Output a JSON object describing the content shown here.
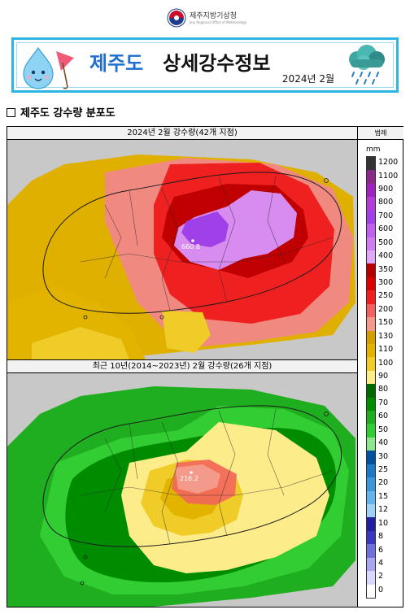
{
  "header": {
    "org_name": "제주지방기상청",
    "org_sub": "Jeju Regional Office of Meteorology"
  },
  "banner": {
    "title_region": "제주도",
    "title_main": "상세강수정보",
    "date": "2024년 2월"
  },
  "section_title": "제주도 강수량 분포도",
  "maps": [
    {
      "title": "2024년 2월 강수량(42개 지점)",
      "max_label": "660.8"
    },
    {
      "title": "최근 10년(2014~2023년) 2월 강수량(26개 지점)",
      "max_label": "216.2"
    }
  ],
  "legend": {
    "header": "범례",
    "unit": "mm",
    "levels": [
      {
        "label": "1200",
        "color": "#333333"
      },
      {
        "label": "1100",
        "color": "#8a2a8a"
      },
      {
        "label": "900",
        "color": "#a020c0"
      },
      {
        "label": "800",
        "color": "#b43cd8"
      },
      {
        "label": "700",
        "color": "#a040e8"
      },
      {
        "label": "600",
        "color": "#c060ee"
      },
      {
        "label": "500",
        "color": "#d07cf2"
      },
      {
        "label": "400",
        "color": "#e0a8f8"
      },
      {
        "label": "350",
        "color": "#b80000"
      },
      {
        "label": "300",
        "color": "#dc0000"
      },
      {
        "label": "250",
        "color": "#f01e1e"
      },
      {
        "label": "200",
        "color": "#f26060"
      },
      {
        "label": "150",
        "color": "#f49a8a"
      },
      {
        "label": "130",
        "color": "#d4a000"
      },
      {
        "label": "110",
        "color": "#e2b400"
      },
      {
        "label": "100",
        "color": "#f0cc28"
      },
      {
        "label": "90",
        "color": "#fcec8a"
      },
      {
        "label": "80",
        "color": "#006a00"
      },
      {
        "label": "70",
        "color": "#008c00"
      },
      {
        "label": "60",
        "color": "#1fae1f"
      },
      {
        "label": "50",
        "color": "#32cd32"
      },
      {
        "label": "40",
        "color": "#8ee68e"
      },
      {
        "label": "30",
        "color": "#0050a0"
      },
      {
        "label": "25",
        "color": "#1e78c8"
      },
      {
        "label": "20",
        "color": "#3c96dc"
      },
      {
        "label": "15",
        "color": "#64b4f0"
      },
      {
        "label": "12",
        "color": "#a0d2f8"
      },
      {
        "label": "10",
        "color": "#2020a0"
      },
      {
        "label": "8",
        "color": "#3838c0"
      },
      {
        "label": "6",
        "color": "#7070dc"
      },
      {
        "label": "4",
        "color": "#a8a8f0"
      },
      {
        "label": "2",
        "color": "#d8d8ff"
      },
      {
        "label": "0",
        "color": "#ffffff"
      }
    ]
  }
}
